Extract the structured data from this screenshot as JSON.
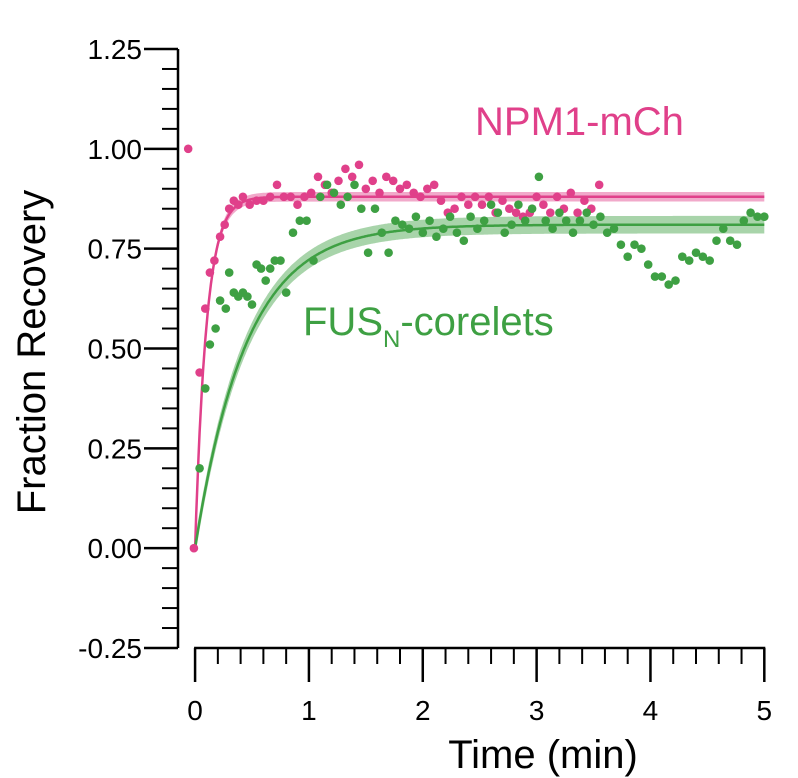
{
  "chart_data": {
    "type": "scatter",
    "xlabel": "Time (min)",
    "ylabel": "Fraction Recovery",
    "xlim": [
      -0.15,
      5.05
    ],
    "ylim": [
      -0.25,
      1.25
    ],
    "xticks": [
      0,
      1,
      2,
      3,
      4,
      5
    ],
    "xtick_labels": [
      "0",
      "1",
      "2",
      "3",
      "4",
      "5"
    ],
    "yticks": [
      -0.25,
      0,
      0.25,
      0.5,
      0.75,
      1.0,
      1.25
    ],
    "ytick_labels": [
      "-0.25",
      "0.00",
      "0.25",
      "0.50",
      "0.75",
      "1.00",
      "1.25"
    ],
    "grid": false,
    "series": [
      {
        "name": "NPM1-mCh",
        "name_sub": "",
        "name_tail": "",
        "color": "#e0408a",
        "fit": {
          "plateau": 0.88,
          "tau": 0.1,
          "band": 0.012
        },
        "points": [
          [
            -0.06,
            1.0
          ],
          [
            -0.01,
            0.0
          ],
          [
            0.04,
            0.44
          ],
          [
            0.09,
            0.6
          ],
          [
            0.13,
            0.69
          ],
          [
            0.17,
            0.72
          ],
          [
            0.22,
            0.78
          ],
          [
            0.26,
            0.81
          ],
          [
            0.3,
            0.85
          ],
          [
            0.34,
            0.87
          ],
          [
            0.38,
            0.86
          ],
          [
            0.42,
            0.88
          ],
          [
            0.48,
            0.86
          ],
          [
            0.54,
            0.87
          ],
          [
            0.6,
            0.87
          ],
          [
            0.66,
            0.88
          ],
          [
            0.72,
            0.91
          ],
          [
            0.78,
            0.88
          ],
          [
            0.84,
            0.88
          ],
          [
            0.9,
            0.86
          ],
          [
            0.96,
            0.88
          ],
          [
            1.02,
            0.89
          ],
          [
            1.08,
            0.93
          ],
          [
            1.14,
            0.91
          ],
          [
            1.2,
            0.89
          ],
          [
            1.26,
            0.92
          ],
          [
            1.32,
            0.95
          ],
          [
            1.38,
            0.93
          ],
          [
            1.44,
            0.96
          ],
          [
            1.5,
            0.9
          ],
          [
            1.56,
            0.92
          ],
          [
            1.62,
            0.89
          ],
          [
            1.68,
            0.93
          ],
          [
            1.74,
            0.92
          ],
          [
            1.8,
            0.9
          ],
          [
            1.86,
            0.91
          ],
          [
            1.92,
            0.89
          ],
          [
            1.98,
            0.88
          ],
          [
            2.04,
            0.9
          ],
          [
            2.1,
            0.91
          ],
          [
            2.16,
            0.87
          ],
          [
            2.22,
            0.84
          ],
          [
            2.28,
            0.85
          ],
          [
            2.34,
            0.88
          ],
          [
            2.4,
            0.86
          ],
          [
            2.46,
            0.88
          ],
          [
            2.52,
            0.86
          ],
          [
            2.58,
            0.88
          ],
          [
            2.64,
            0.84
          ],
          [
            2.7,
            0.87
          ],
          [
            2.76,
            0.85
          ],
          [
            2.82,
            0.84
          ],
          [
            2.88,
            0.83
          ],
          [
            2.94,
            0.84
          ],
          [
            3.0,
            0.88
          ],
          [
            3.06,
            0.86
          ],
          [
            3.12,
            0.84
          ],
          [
            3.18,
            0.88
          ],
          [
            3.24,
            0.85
          ],
          [
            3.3,
            0.89
          ],
          [
            3.36,
            0.84
          ],
          [
            3.42,
            0.87
          ],
          [
            3.48,
            0.85
          ],
          [
            3.55,
            0.91
          ]
        ]
      },
      {
        "name": "FUS",
        "name_sub": "N",
        "name_tail": "-corelets",
        "color": "#3ea043",
        "fit": {
          "plateau": 0.81,
          "tau": 0.45,
          "band": 0.022
        },
        "points": [
          [
            0.04,
            0.2
          ],
          [
            0.09,
            0.4
          ],
          [
            0.13,
            0.51
          ],
          [
            0.18,
            0.55
          ],
          [
            0.22,
            0.62
          ],
          [
            0.27,
            0.6
          ],
          [
            0.3,
            0.69
          ],
          [
            0.34,
            0.64
          ],
          [
            0.38,
            0.63
          ],
          [
            0.42,
            0.64
          ],
          [
            0.46,
            0.63
          ],
          [
            0.5,
            0.61
          ],
          [
            0.54,
            0.71
          ],
          [
            0.58,
            0.7
          ],
          [
            0.62,
            0.67
          ],
          [
            0.66,
            0.7
          ],
          [
            0.7,
            0.72
          ],
          [
            0.75,
            0.72
          ],
          [
            0.8,
            0.64
          ],
          [
            0.86,
            0.79
          ],
          [
            0.92,
            0.82
          ],
          [
            0.98,
            0.82
          ],
          [
            1.04,
            0.72
          ],
          [
            1.1,
            0.88
          ],
          [
            1.16,
            0.91
          ],
          [
            1.22,
            0.89
          ],
          [
            1.28,
            0.86
          ],
          [
            1.34,
            0.88
          ],
          [
            1.4,
            0.91
          ],
          [
            1.46,
            0.85
          ],
          [
            1.52,
            0.74
          ],
          [
            1.58,
            0.85
          ],
          [
            1.64,
            0.79
          ],
          [
            1.7,
            0.74
          ],
          [
            1.76,
            0.82
          ],
          [
            1.82,
            0.81
          ],
          [
            1.88,
            0.8
          ],
          [
            1.94,
            0.83
          ],
          [
            2.0,
            0.79
          ],
          [
            2.06,
            0.82
          ],
          [
            2.12,
            0.78
          ],
          [
            2.18,
            0.8
          ],
          [
            2.24,
            0.83
          ],
          [
            2.3,
            0.79
          ],
          [
            2.36,
            0.77
          ],
          [
            2.42,
            0.83
          ],
          [
            2.48,
            0.8
          ],
          [
            2.54,
            0.82
          ],
          [
            2.6,
            0.86
          ],
          [
            2.66,
            0.84
          ],
          [
            2.72,
            0.79
          ],
          [
            2.78,
            0.81
          ],
          [
            2.84,
            0.86
          ],
          [
            2.9,
            0.82
          ],
          [
            2.96,
            0.85
          ],
          [
            3.02,
            0.93
          ],
          [
            3.08,
            0.82
          ],
          [
            3.14,
            0.8
          ],
          [
            3.2,
            0.84
          ],
          [
            3.26,
            0.82
          ],
          [
            3.32,
            0.79
          ],
          [
            3.38,
            0.82
          ],
          [
            3.44,
            0.84
          ],
          [
            3.5,
            0.81
          ],
          [
            3.56,
            0.83
          ],
          [
            3.62,
            0.79
          ],
          [
            3.68,
            0.8
          ],
          [
            3.74,
            0.76
          ],
          [
            3.8,
            0.73
          ],
          [
            3.86,
            0.76
          ],
          [
            3.92,
            0.75
          ],
          [
            3.98,
            0.71
          ],
          [
            4.04,
            0.68
          ],
          [
            4.1,
            0.68
          ],
          [
            4.16,
            0.66
          ],
          [
            4.22,
            0.67
          ],
          [
            4.28,
            0.73
          ],
          [
            4.34,
            0.72
          ],
          [
            4.4,
            0.74
          ],
          [
            4.46,
            0.73
          ],
          [
            4.52,
            0.72
          ],
          [
            4.58,
            0.77
          ],
          [
            4.64,
            0.8
          ],
          [
            4.7,
            0.77
          ],
          [
            4.76,
            0.76
          ],
          [
            4.82,
            0.82
          ],
          [
            4.88,
            0.84
          ],
          [
            4.94,
            0.83
          ],
          [
            5.0,
            0.83
          ]
        ]
      }
    ]
  }
}
